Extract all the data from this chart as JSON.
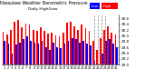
{
  "title": "Milwaukee Weather Barometric Pressure",
  "subtitle": "Daily High/Low",
  "bar_color_high": "#ff0000",
  "bar_color_low": "#0000ff",
  "background_color": "#ffffff",
  "legend_high_color": "#ff0000",
  "legend_low_color": "#0000ff",
  "legend_high_label": "High",
  "legend_low_label": "Low",
  "ylim": [
    29.0,
    30.75
  ],
  "yticks": [
    29.0,
    29.2,
    29.4,
    29.6,
    29.8,
    30.0,
    30.2,
    30.4,
    30.6
  ],
  "highs": [
    30.15,
    30.05,
    30.22,
    30.5,
    30.55,
    30.3,
    30.42,
    30.38,
    30.22,
    30.18,
    30.3,
    30.18,
    30.08,
    30.12,
    30.02,
    29.98,
    30.12,
    30.45,
    30.48,
    30.32,
    30.22,
    30.38,
    30.28,
    30.18,
    29.82,
    29.52,
    29.92,
    30.22,
    30.32,
    30.12,
    30.05
  ],
  "lows": [
    29.82,
    29.72,
    29.4,
    29.7,
    29.78,
    29.88,
    29.98,
    29.82,
    29.78,
    29.72,
    29.82,
    29.62,
    29.52,
    29.78,
    29.62,
    29.58,
    29.72,
    29.82,
    29.92,
    29.88,
    29.78,
    29.82,
    29.72,
    29.68,
    29.15,
    29.05,
    29.4,
    29.82,
    29.88,
    29.72,
    29.62
  ],
  "dates": [
    "1",
    "2",
    "3",
    "4",
    "5",
    "6",
    "7",
    "8",
    "9",
    "10",
    "11",
    "12",
    "13",
    "14",
    "15",
    "16",
    "17",
    "18",
    "19",
    "20",
    "21",
    "22",
    "23",
    "24",
    "25",
    "26",
    "27",
    "28",
    "29",
    "30",
    "31"
  ],
  "dashed_indices": [
    24,
    25,
    26,
    27
  ],
  "ytick_fontsize": 3.0,
  "xtick_fontsize": 2.5,
  "title_fontsize": 3.5,
  "legend_fontsize": 3.0,
  "bar_width": 0.42
}
